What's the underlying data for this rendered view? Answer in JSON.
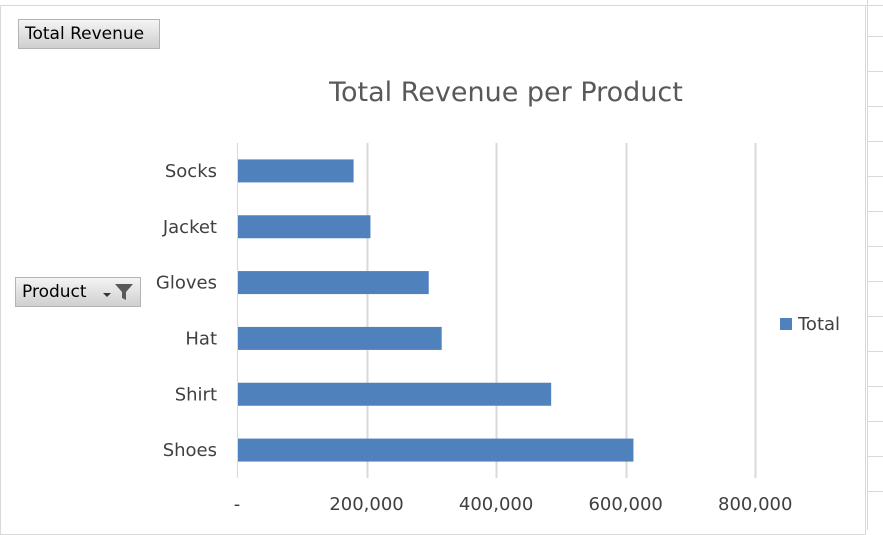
{
  "pivot": {
    "values_button": "Total Revenue",
    "axis_button": "Product"
  },
  "icons": {
    "filter": "funnel-icon",
    "dropdown": "chevron-down-icon"
  },
  "chart_data": {
    "type": "bar",
    "orientation": "horizontal",
    "title": "Total Revenue per Product",
    "categories": [
      "Shoes",
      "Shirt",
      "Hat",
      "Gloves",
      "Jacket",
      "Socks"
    ],
    "series": [
      {
        "name": "Total",
        "color": "#4f81bd",
        "values": [
          612000,
          485000,
          316000,
          296000,
          206000,
          180000
        ]
      }
    ],
    "xlim": [
      0,
      900000
    ],
    "xticks": [
      0,
      200000,
      400000,
      600000,
      800000
    ],
    "xtick_labels": [
      "-",
      "200,000",
      "400,000",
      "600,000",
      "800,000"
    ],
    "grid": true,
    "legend": "right"
  }
}
